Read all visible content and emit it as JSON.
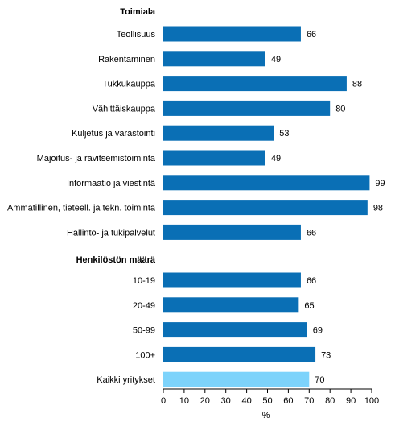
{
  "chart_data": {
    "type": "bar",
    "orientation": "horizontal",
    "xlabel": "%",
    "xlim": [
      0,
      100
    ],
    "xticks": [
      0,
      10,
      20,
      30,
      40,
      50,
      60,
      70,
      80,
      90,
      100
    ],
    "grid": false,
    "colors": {
      "bar": "#0a6fb5",
      "highlight": "#7dd3fb"
    },
    "groups": [
      {
        "heading": "Toimiala",
        "items": [
          {
            "label": "Teollisuus",
            "value": 66
          },
          {
            "label": "Rakentaminen",
            "value": 49
          },
          {
            "label": "Tukkukauppa",
            "value": 88
          },
          {
            "label": "Vähittäiskauppa",
            "value": 80
          },
          {
            "label": "Kuljetus ja varastointi",
            "value": 53
          },
          {
            "label": "Majoitus- ja ravitsemistoiminta",
            "value": 49
          },
          {
            "label": "Informaatio ja viestintä",
            "value": 99
          },
          {
            "label": "Ammatillinen, tieteell. ja tekn. toiminta",
            "value": 98
          },
          {
            "label": "Hallinto- ja tukipalvelut",
            "value": 66
          }
        ]
      },
      {
        "heading": "Henkilöstön määrä",
        "items": [
          {
            "label": "10-19",
            "value": 66
          },
          {
            "label": "20-49",
            "value": 65
          },
          {
            "label": "50-99",
            "value": 69
          },
          {
            "label": "100+",
            "value": 73
          },
          {
            "label": "Kaikki yritykset",
            "value": 70,
            "highlight": true
          }
        ]
      }
    ]
  }
}
